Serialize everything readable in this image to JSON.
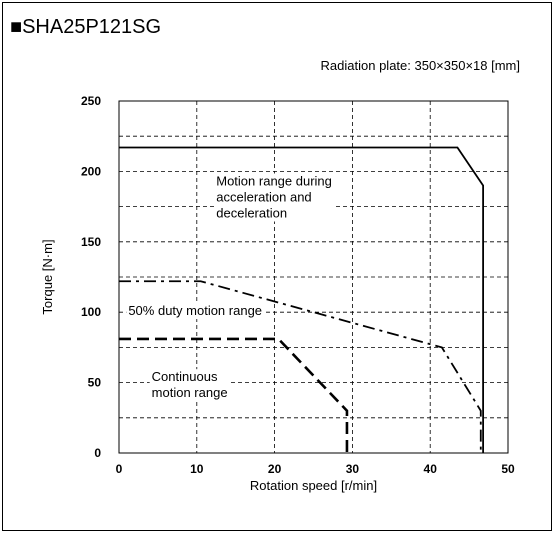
{
  "chart_data": {
    "type": "line",
    "title": "■SHA25P121SG",
    "subtitle": "Radiation plate: 350×350×18 [mm]",
    "xlabel": "Rotation speed [r/min]",
    "ylabel": "Torque [N·m]",
    "xlim": [
      0,
      50
    ],
    "ylim": [
      0,
      250
    ],
    "xticks": [
      0,
      10,
      20,
      30,
      40,
      50
    ],
    "yticks": [
      0,
      50,
      100,
      150,
      200,
      250
    ],
    "x_tick_labels": [
      "0",
      "10",
      "20",
      "30",
      "40",
      "50"
    ],
    "y_tick_labels": [
      "0",
      "50",
      "100",
      "150",
      "200",
      "250"
    ],
    "grid": true,
    "grid_minor_y": [
      25,
      75,
      125,
      175,
      225
    ],
    "series": [
      {
        "style": "solid",
        "x": [
          0,
          43.5,
          46.8,
          46.8
        ],
        "y": [
          217,
          217,
          190,
          0
        ]
      },
      {
        "style": "dashdot",
        "x": [
          0,
          10.5,
          41.5,
          46.5,
          46.5
        ],
        "y": [
          122,
          122,
          75,
          30,
          0
        ]
      },
      {
        "style": "dashed",
        "x": [
          0,
          20.5,
          29.3,
          29.3
        ],
        "y": [
          81,
          81,
          30,
          0
        ]
      }
    ],
    "annotations": [
      {
        "lines": [
          "Motion range during",
          "acceleration and",
          "deceleration"
        ],
        "x": 12.5,
        "y": 190
      },
      {
        "lines": [
          "50% duty motion range"
        ],
        "x": 1.2,
        "y": 98
      },
      {
        "lines": [
          "Continuous",
          "motion range"
        ],
        "x": 4.2,
        "y": 51
      }
    ]
  }
}
